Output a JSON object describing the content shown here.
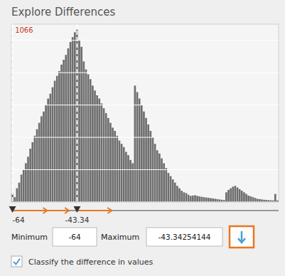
{
  "chart_data": {
    "type": "bar",
    "title": "Explore Differences",
    "categories": [
      null,
      null,
      null,
      null,
      null,
      null,
      null,
      null,
      null,
      null,
      null,
      null,
      null,
      null,
      null,
      null,
      null,
      null,
      null,
      null,
      null,
      null,
      null,
      null,
      null,
      null,
      null,
      null,
      null,
      null,
      null,
      null,
      null,
      null,
      null,
      null,
      null,
      null,
      null,
      null,
      null,
      null,
      null,
      null,
      null,
      null,
      null,
      null,
      null,
      null,
      null,
      null,
      null,
      null,
      null,
      null,
      null,
      null,
      null,
      null,
      null,
      null,
      null,
      null,
      null,
      null,
      null,
      null,
      null,
      null,
      null,
      null,
      null,
      null,
      null,
      null,
      null,
      null,
      null,
      null,
      null,
      null,
      null,
      null,
      null,
      null,
      null,
      null,
      null,
      null,
      null,
      null,
      null,
      null,
      null,
      null,
      null,
      null,
      null,
      null,
      null,
      null,
      null,
      null,
      null,
      null,
      null,
      null,
      null,
      null,
      null,
      null,
      null,
      null,
      null,
      null,
      null,
      null,
      null,
      null
    ],
    "values": [
      55,
      30,
      85,
      120,
      170,
      200,
      240,
      280,
      330,
      370,
      410,
      450,
      490,
      530,
      560,
      600,
      640,
      670,
      710,
      750,
      780,
      810,
      850,
      880,
      910,
      950,
      990,
      1020,
      1050,
      1066,
      1000,
      960,
      870,
      820,
      790,
      760,
      720,
      690,
      660,
      640,
      610,
      580,
      550,
      520,
      490,
      460,
      440,
      410,
      380,
      360,
      340,
      310,
      290,
      260,
      240,
      720,
      680,
      640,
      600,
      560,
      520,
      480,
      440,
      400,
      360,
      320,
      300,
      270,
      240,
      210,
      180,
      160,
      140,
      120,
      100,
      85,
      70,
      60,
      55,
      45,
      38,
      40,
      42,
      38,
      35,
      32,
      30,
      28,
      26,
      24,
      22,
      20,
      18,
      16,
      14,
      12,
      60,
      75,
      85,
      95,
      100,
      90,
      80,
      70,
      60,
      50,
      40,
      35,
      30,
      25,
      20,
      18,
      16,
      14,
      13,
      12,
      11,
      10,
      50,
      10
    ],
    "color": "#6e6e6e",
    "ylim": [
      0,
      1100
    ],
    "yticks": [
      0,
      200,
      400,
      600,
      800,
      1000
    ],
    "grid": true,
    "tick_labels": false,
    "vlines": [
      0,
      29
    ],
    "annotations": [
      {
        "text": "1066",
        "x": 0
      }
    ],
    "range_labels": [
      "-64",
      "-43.34"
    ],
    "inputs": [
      {
        "label": "Minimum",
        "value": "-64"
      },
      {
        "label": "Maximum",
        "value": "-43.34254144"
      }
    ],
    "checkbox_label": "Classify the difference in values"
  }
}
